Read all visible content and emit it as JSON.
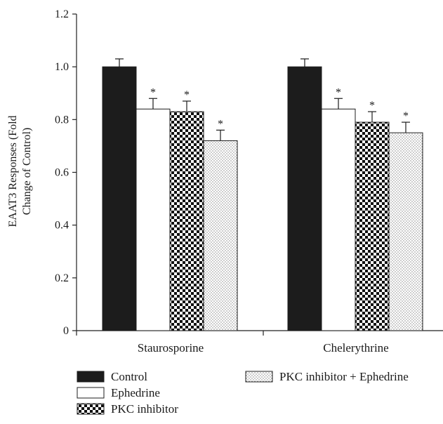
{
  "chart_data": {
    "type": "bar",
    "title": "",
    "xlabel": "",
    "ylabel_line1": "EAAT3 Responses (Fold",
    "ylabel_line2": "Change of Control)",
    "ylim": [
      0,
      1.2
    ],
    "yticks": [
      "0",
      "0.2",
      "0.4",
      "0.6",
      "0.8",
      "1.0",
      "1.2"
    ],
    "categories": [
      "Staurosporine",
      "Chelerythrine"
    ],
    "series": [
      {
        "name": "Control",
        "values": [
          1.0,
          1.0
        ],
        "errors": [
          0.03,
          0.03
        ],
        "significant": [
          false,
          false
        ],
        "pattern": "solid"
      },
      {
        "name": "Ephedrine",
        "values": [
          0.84,
          0.84
        ],
        "errors": [
          0.04,
          0.04
        ],
        "significant": [
          true,
          true
        ],
        "pattern": "white"
      },
      {
        "name": "PKC inhibitor",
        "values": [
          0.83,
          0.79
        ],
        "errors": [
          0.04,
          0.04
        ],
        "significant": [
          true,
          true
        ],
        "pattern": "checker"
      },
      {
        "name": "PKC inhibitor + Ephedrine",
        "values": [
          0.72,
          0.75
        ],
        "errors": [
          0.04,
          0.04
        ],
        "significant": [
          true,
          true
        ],
        "pattern": "dots"
      }
    ],
    "significance_marker": "*",
    "legend_position": "bottom",
    "grid": false
  }
}
